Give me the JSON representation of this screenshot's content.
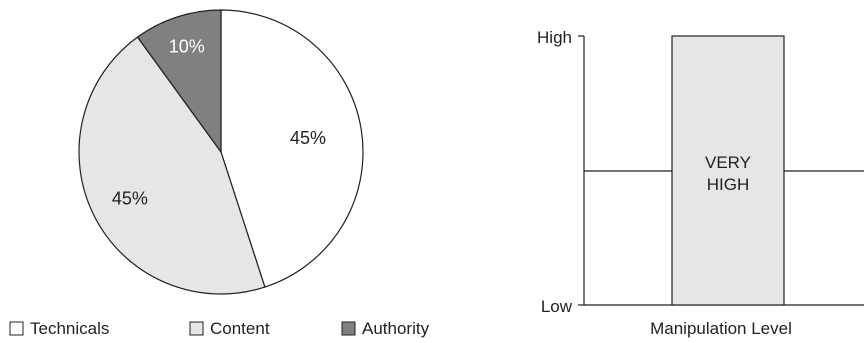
{
  "chart_data": [
    {
      "type": "pie",
      "slices": [
        {
          "label": "Technicals",
          "value": 45,
          "value_label": "45%",
          "color": "#ffffff"
        },
        {
          "label": "Content",
          "value": 45,
          "value_label": "45%",
          "color": "#e6e6e7"
        },
        {
          "label": "Authority",
          "value": 10,
          "value_label": "10%",
          "color": "#808080"
        }
      ],
      "legend": "bottom"
    },
    {
      "type": "bar",
      "categories": [
        "Manipulation Level"
      ],
      "values": [
        "High"
      ],
      "bar_label_lines": [
        "VERY",
        "HIGH"
      ],
      "xlabel": "Manipulation Level",
      "ylabel": "",
      "y_ticks": [
        "Low",
        "High"
      ],
      "grid": "middle",
      "bar_color": "#e6e6e7"
    }
  ]
}
